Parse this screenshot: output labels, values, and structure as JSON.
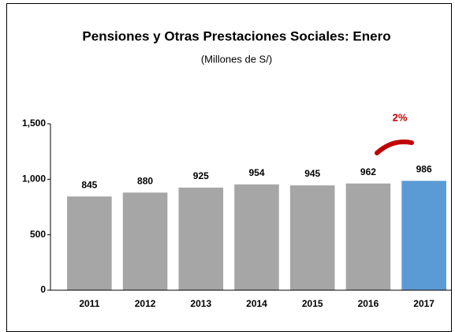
{
  "chart_data": {
    "type": "bar",
    "title": "Pensiones y Otras Prestaciones Sociales: Enero",
    "subtitle": "(Millones de S/)",
    "annotation": "2%",
    "categories": [
      "2011",
      "2012",
      "2013",
      "2014",
      "2015",
      "2016",
      "2017"
    ],
    "values": [
      845,
      880,
      925,
      954,
      945,
      962,
      986
    ],
    "colors": [
      "#a6a6a6",
      "#a6a6a6",
      "#a6a6a6",
      "#a6a6a6",
      "#a6a6a6",
      "#a6a6a6",
      "#5b9bd5"
    ],
    "ylim": [
      0,
      1500
    ],
    "yticks": [
      0,
      500,
      {
        "value": 1000,
        "label": "1,000"
      },
      {
        "value": 1500,
        "label": "1,500"
      }
    ],
    "grid": false
  }
}
